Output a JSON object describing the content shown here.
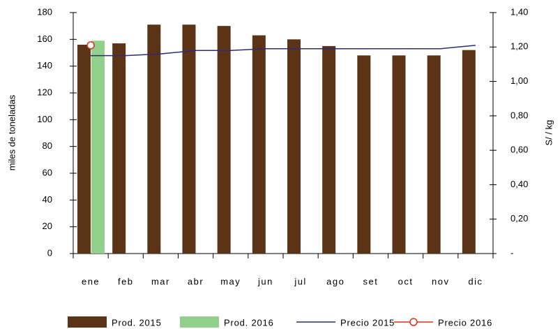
{
  "chart_data": {
    "type": "bar",
    "categories": [
      "ene",
      "feb",
      "mar",
      "abr",
      "may",
      "jun",
      "jul",
      "ago",
      "set",
      "oct",
      "nov",
      "dic"
    ],
    "series": [
      {
        "name": "Prod. 2015",
        "type": "bar",
        "color": "#5b3316",
        "values": [
          156,
          157,
          171,
          171,
          170,
          163,
          160,
          155,
          148,
          148,
          148,
          152
        ]
      },
      {
        "name": "Prod. 2016",
        "type": "bar",
        "color": "#92d18b",
        "values": [
          159,
          null,
          null,
          null,
          null,
          null,
          null,
          null,
          null,
          null,
          null,
          null
        ]
      },
      {
        "name": "Precio 2015",
        "type": "line",
        "axis": "y2",
        "color": "#2e2a7a",
        "values": [
          1.15,
          1.15,
          1.16,
          1.18,
          1.18,
          1.19,
          1.19,
          1.19,
          1.19,
          1.19,
          1.19,
          1.21
        ]
      },
      {
        "name": "Precio 2016",
        "type": "line",
        "axis": "y2",
        "color": "#e0301e",
        "marker": "circle",
        "values": [
          1.21,
          null,
          null,
          null,
          null,
          null,
          null,
          null,
          null,
          null,
          null,
          null
        ]
      }
    ],
    "ylabel": "miles de toneladas",
    "y2label": "S/ / kg",
    "ylim": [
      0,
      180
    ],
    "yticks": [
      0,
      20,
      40,
      60,
      80,
      100,
      120,
      140,
      160,
      180
    ],
    "y2lim": [
      0,
      1.4
    ],
    "y2ticks": [
      {
        "value": 0,
        "label": "-"
      },
      {
        "value": 0.2,
        "label": "0,20"
      },
      {
        "value": 0.4,
        "label": "0,40"
      },
      {
        "value": 0.6,
        "label": "0,60"
      },
      {
        "value": 0.8,
        "label": "0,80"
      },
      {
        "value": 1.0,
        "label": "1,00"
      },
      {
        "value": 1.2,
        "label": "1,20"
      },
      {
        "value": 1.4,
        "label": "1,40"
      }
    ],
    "grid": false,
    "legend": "bottom"
  }
}
